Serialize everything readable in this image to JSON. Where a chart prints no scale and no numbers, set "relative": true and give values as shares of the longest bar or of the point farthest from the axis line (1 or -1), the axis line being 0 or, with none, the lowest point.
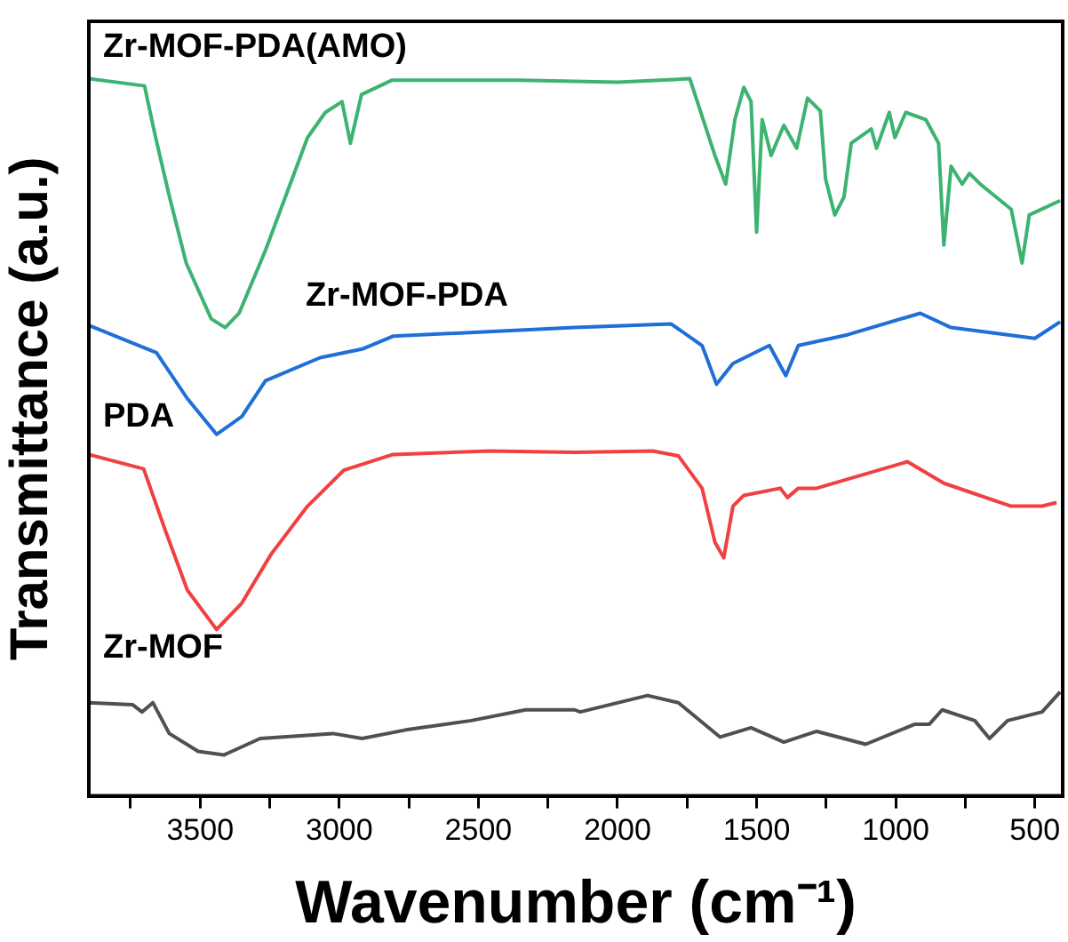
{
  "chart_data": {
    "type": "line",
    "relative": true,
    "xlabel": "Wavenumber (cm⁻¹)",
    "ylabel": "Transmittance (a.u.)",
    "xlim": [
      3900,
      400
    ],
    "xticks": [
      {
        "value": 3750,
        "label": null
      },
      3500,
      {
        "value": 3250,
        "label": null
      },
      3000,
      {
        "value": 2750,
        "label": null
      },
      2500,
      {
        "value": 2250,
        "label": null
      },
      2000,
      {
        "value": 1750,
        "label": null
      },
      1500,
      {
        "value": 1250,
        "label": null
      },
      1000,
      {
        "value": 750,
        "label": null
      },
      500
    ],
    "grid": false,
    "legend": false,
    "marker": "none",
    "line_style": "solid",
    "series": [
      {
        "name": "Zr-MOF-PDA(AMO)",
        "color": "#3cb371",
        "x": [
          3900,
          3700,
          3660,
          3610,
          3550,
          3460,
          3410,
          3360,
          3265,
          3114,
          3050,
          2990,
          2960,
          2920,
          2810,
          2350,
          2000,
          1740,
          1650,
          1611,
          1578,
          1546,
          1520,
          1500,
          1480,
          1448,
          1402,
          1356,
          1317,
          1271,
          1252,
          1219,
          1186,
          1160,
          1088,
          1069,
          1023,
          1003,
          964,
          892,
          846,
          827,
          801,
          761,
          735,
          696,
          585,
          546,
          520,
          409
        ],
        "values": [
          1.0,
          0.99,
          0.918,
          0.835,
          0.743,
          0.665,
          0.653,
          0.673,
          0.761,
          0.918,
          0.953,
          0.968,
          0.91,
          0.978,
          0.998,
          0.998,
          0.995,
          1.0,
          0.893,
          0.853,
          0.943,
          0.988,
          0.968,
          0.786,
          0.943,
          0.893,
          0.935,
          0.903,
          0.973,
          0.955,
          0.86,
          0.81,
          0.835,
          0.91,
          0.93,
          0.903,
          0.953,
          0.918,
          0.953,
          0.943,
          0.91,
          0.768,
          0.878,
          0.853,
          0.868,
          0.853,
          0.818,
          0.743,
          0.81,
          0.83
        ]
      },
      {
        "name": "Zr-MOF-PDA",
        "color": "#1f6fd6",
        "x": [
          3900,
          3657,
          3546,
          3441,
          3350,
          3265,
          3069,
          2918,
          2807,
          2154,
          1807,
          1696,
          1644,
          1585,
          1454,
          1395,
          1350,
          1173,
          912,
          801,
          500,
          409
        ],
        "values": [
          0.656,
          0.618,
          0.554,
          0.504,
          0.529,
          0.579,
          0.611,
          0.623,
          0.641,
          0.653,
          0.658,
          0.628,
          0.574,
          0.603,
          0.628,
          0.586,
          0.628,
          0.643,
          0.673,
          0.653,
          0.638,
          0.661
        ]
      },
      {
        "name": "PDA",
        "color": "#f04040",
        "x": [
          3900,
          3703,
          3624,
          3546,
          3441,
          3350,
          3245,
          3114,
          2984,
          2807,
          2461,
          2154,
          1873,
          1781,
          1696,
          1650,
          1618,
          1585,
          1546,
          1415,
          1389,
          1350,
          1284,
          958,
          827,
          585,
          474,
          422
        ],
        "values": [
          0.476,
          0.456,
          0.369,
          0.287,
          0.232,
          0.269,
          0.337,
          0.404,
          0.454,
          0.476,
          0.481,
          0.479,
          0.481,
          0.474,
          0.429,
          0.354,
          0.332,
          0.404,
          0.419,
          0.429,
          0.416,
          0.429,
          0.429,
          0.466,
          0.436,
          0.404,
          0.404,
          0.409
        ]
      },
      {
        "name": "Zr-MOF",
        "color": "#505050",
        "x": [
          3900,
          3742,
          3709,
          3670,
          3611,
          3507,
          3415,
          3284,
          3023,
          2918,
          2761,
          2526,
          2330,
          2154,
          2134,
          1892,
          1781,
          1631,
          1520,
          1402,
          1284,
          1108,
          931,
          879,
          833,
          716,
          663,
          598,
          474,
          409
        ],
        "values": [
          0.13,
          0.127,
          0.117,
          0.13,
          0.087,
          0.062,
          0.057,
          0.08,
          0.087,
          0.08,
          0.092,
          0.105,
          0.12,
          0.12,
          0.117,
          0.14,
          0.13,
          0.082,
          0.095,
          0.075,
          0.09,
          0.072,
          0.1,
          0.1,
          0.12,
          0.105,
          0.08,
          0.105,
          0.117,
          0.145
        ]
      }
    ]
  }
}
